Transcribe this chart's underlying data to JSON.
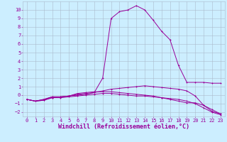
{
  "x": [
    0,
    1,
    2,
    3,
    4,
    5,
    6,
    7,
    8,
    9,
    10,
    11,
    12,
    13,
    14,
    15,
    16,
    17,
    18,
    19,
    20,
    21,
    22,
    23
  ],
  "line1": [
    -0.5,
    -0.7,
    -0.6,
    -0.3,
    -0.2,
    -0.1,
    0.0,
    0.1,
    0.3,
    0.5,
    0.7,
    0.8,
    0.9,
    1.0,
    1.1,
    1.0,
    0.9,
    0.8,
    0.7,
    0.5,
    -0.1,
    -1.2,
    -1.9,
    -2.2
  ],
  "line2": [
    -0.5,
    -0.7,
    -0.6,
    -0.3,
    -0.3,
    -0.2,
    -0.1,
    0.0,
    0.1,
    0.2,
    0.2,
    0.1,
    0.0,
    -0.1,
    -0.1,
    -0.2,
    -0.3,
    -0.4,
    -0.5,
    -0.7,
    -1.0,
    -1.5,
    -2.0,
    -2.3
  ],
  "line3": [
    -0.5,
    -0.7,
    -0.5,
    -0.2,
    -0.2,
    -0.1,
    0.1,
    0.2,
    0.3,
    2.0,
    9.0,
    9.8,
    10.0,
    10.5,
    10.0,
    8.8,
    7.5,
    6.5,
    3.5,
    1.5,
    1.5,
    1.5,
    1.4,
    1.4
  ],
  "line4": [
    -0.5,
    -0.7,
    -0.5,
    -0.2,
    -0.2,
    -0.1,
    0.2,
    0.3,
    0.4,
    0.4,
    0.4,
    0.3,
    0.2,
    0.1,
    0.0,
    -0.1,
    -0.3,
    -0.5,
    -0.7,
    -0.9,
    -0.9,
    -1.2,
    -1.7,
    -2.2
  ],
  "bg_color": "#cceeff",
  "line_color": "#990099",
  "grid_color": "#aabbcc",
  "xlabel": "Windchill (Refroidissement éolien,°C)",
  "ylim": [
    -2.5,
    11
  ],
  "xlim": [
    -0.5,
    23.5
  ],
  "tick_fontsize": 5,
  "label_fontsize": 6
}
